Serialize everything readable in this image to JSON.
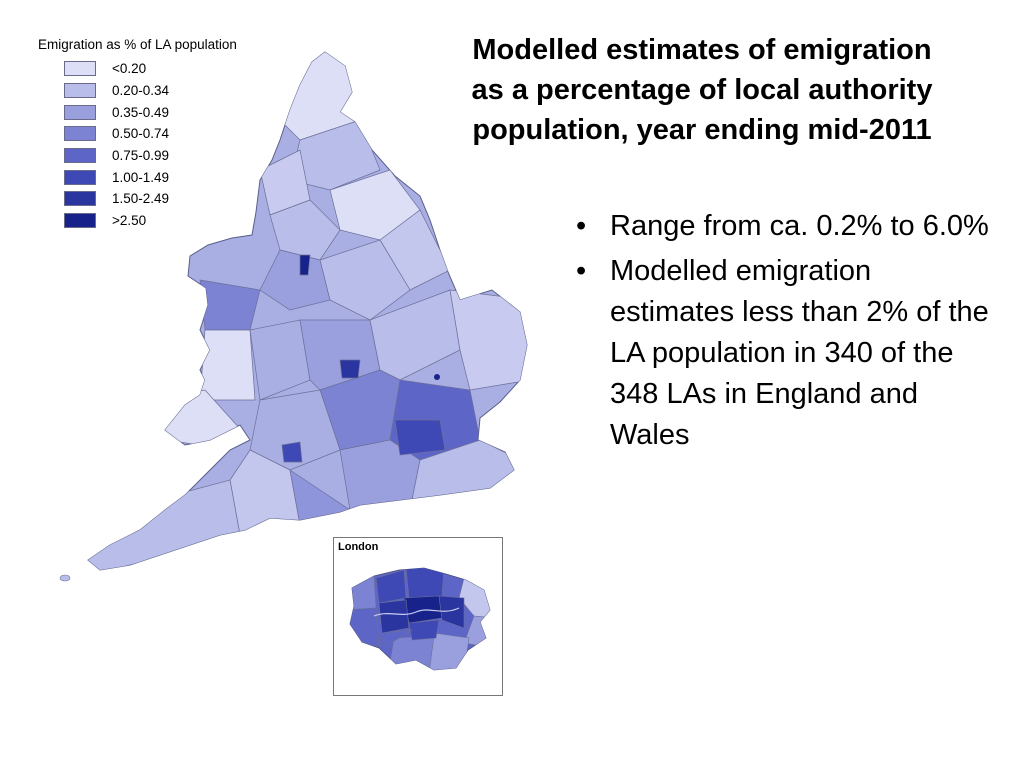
{
  "slide": {
    "title_lines": [
      "Modelled estimates of emigration",
      "as a percentage of local authority",
      "population, year ending mid-2011"
    ],
    "bullets": [
      "Range from ca. 0.2% to 6.0%",
      "Modelled emigration estimates less than 2% of the LA population in 340 of the 348 LAs in England and Wales"
    ]
  },
  "legend": {
    "title": "Emigration as % of LA population",
    "items": [
      {
        "label": "<0.20",
        "color": "#dcdff6"
      },
      {
        "label": "0.20-0.34",
        "color": "#b9bde9"
      },
      {
        "label": "0.35-0.49",
        "color": "#9aa0de"
      },
      {
        "label": "0.50-0.74",
        "color": "#7c83d3"
      },
      {
        "label": "0.75-0.99",
        "color": "#5d66c6"
      },
      {
        "label": "1.00-1.49",
        "color": "#3f49b5"
      },
      {
        "label": "1.50-2.49",
        "color": "#2a35a0"
      },
      {
        "label": ">2.50",
        "color": "#17238a"
      }
    ]
  },
  "inset": {
    "title": "London"
  }
}
